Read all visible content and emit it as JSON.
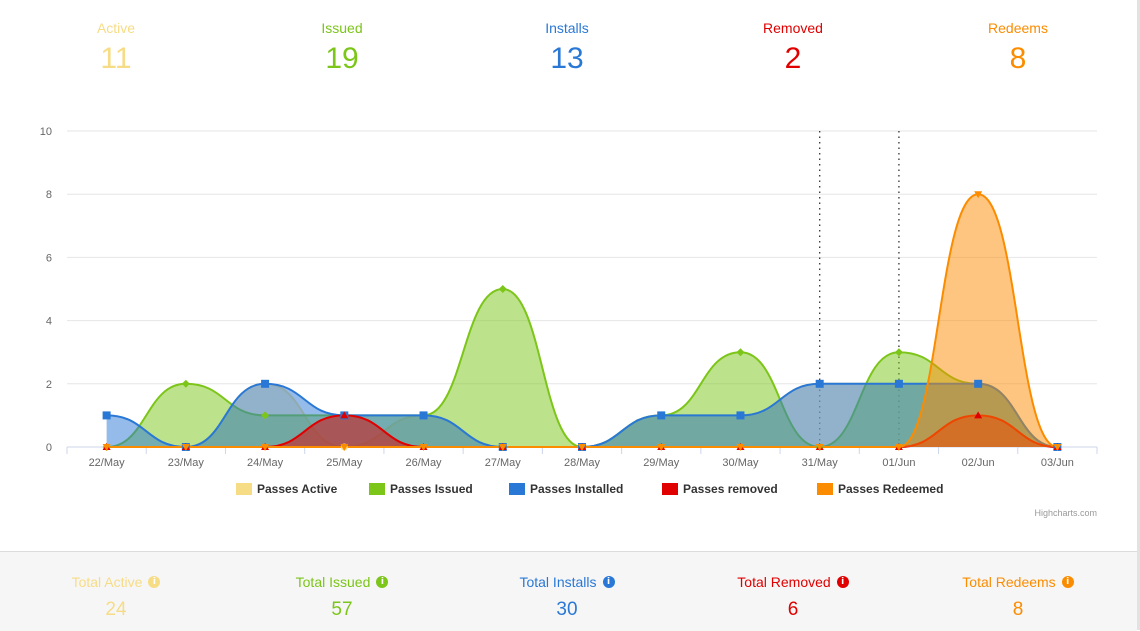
{
  "top_stats": [
    {
      "label": "Active",
      "value": "11",
      "color": "#f7dc86"
    },
    {
      "label": "Issued",
      "value": "19",
      "color": "#7cc519"
    },
    {
      "label": "Installs",
      "value": "13",
      "color": "#2a78d5"
    },
    {
      "label": "Removed",
      "value": "2",
      "color": "#e00000"
    },
    {
      "label": "Redeems",
      "value": "8",
      "color": "#fb8c00"
    }
  ],
  "totals": [
    {
      "label": "Total Active",
      "value": "24",
      "color": "#f7dc86",
      "icon": "info-icon"
    },
    {
      "label": "Total Issued",
      "value": "57",
      "color": "#7cc519",
      "icon": "info-icon"
    },
    {
      "label": "Total Installs",
      "value": "30",
      "color": "#2a78d5",
      "icon": "info-icon"
    },
    {
      "label": "Total Removed",
      "value": "6",
      "color": "#e00000",
      "icon": "info-icon"
    },
    {
      "label": "Total Redeems",
      "value": "8",
      "color": "#fb8c00",
      "icon": "info-icon"
    }
  ],
  "chart_data": {
    "type": "area",
    "categories": [
      "22/May",
      "23/May",
      "24/May",
      "25/May",
      "26/May",
      "27/May",
      "28/May",
      "29/May",
      "30/May",
      "31/May",
      "01/Jun",
      "02/Jun",
      "03/Jun"
    ],
    "ylim": [
      0,
      10
    ],
    "yticks": [
      0,
      2,
      4,
      6,
      8,
      10
    ],
    "grid": true,
    "legend_position": "bottom",
    "credits": "Highcharts.com",
    "plot_lines_at": [
      "31/May",
      "01/Jun"
    ],
    "series": [
      {
        "name": "Passes Active",
        "color": "#f7dc86",
        "values": [
          0,
          0,
          2,
          0,
          1,
          0,
          0,
          1,
          1,
          2,
          2,
          2,
          0
        ]
      },
      {
        "name": "Passes Issued",
        "color": "#7cc519",
        "values": [
          0,
          2,
          1,
          1,
          1,
          5,
          0,
          1,
          3,
          0,
          3,
          2,
          0
        ]
      },
      {
        "name": "Passes Installed",
        "color": "#2a78d5",
        "values": [
          1,
          0,
          2,
          1,
          1,
          0,
          0,
          1,
          1,
          2,
          2,
          2,
          0
        ]
      },
      {
        "name": "Passes removed",
        "color": "#e00000",
        "values": [
          0,
          0,
          0,
          1,
          0,
          0,
          0,
          0,
          0,
          0,
          0,
          1,
          0
        ]
      },
      {
        "name": "Passes Redeemed",
        "color": "#fb8c00",
        "values": [
          0,
          0,
          0,
          0,
          0,
          0,
          0,
          0,
          0,
          0,
          0,
          8,
          0
        ]
      }
    ]
  }
}
